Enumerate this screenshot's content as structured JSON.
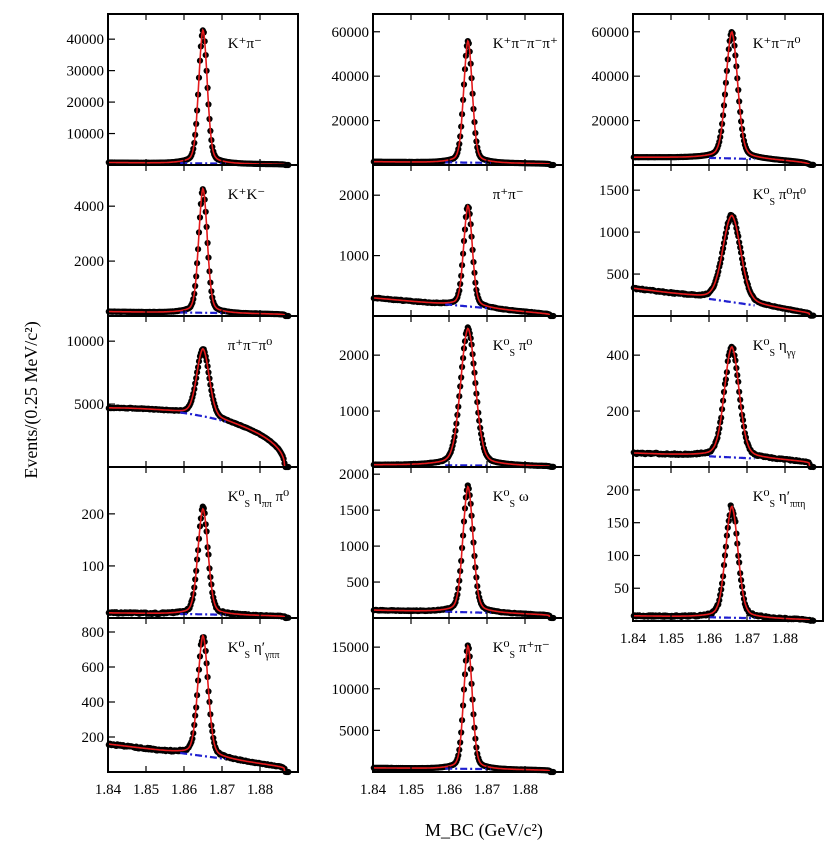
{
  "chart_data": {
    "type": "scatter",
    "xlabel": "M_BC (GeV/c²)",
    "ylabel": "Events/(0.25 MeV/c²)",
    "xlim": [
      1.84,
      1.89
    ],
    "x_ticks": [
      "1.84",
      "1.85",
      "1.86",
      "1.87",
      "1.88"
    ],
    "grid": false,
    "legend": "none",
    "colors": {
      "data": "#000000",
      "fit": "#e41a1c",
      "background": "#1f1fd0"
    },
    "panels": [
      {
        "id": "kpi",
        "label": "K⁺π⁻",
        "peak_x": 1.865,
        "peak_y": 43000,
        "sigma": 0.0011,
        "bkg_left": 800,
        "bkg_right": 300,
        "ylim": [
          0,
          48000
        ],
        "y_ticks": [
          10000,
          20000,
          30000,
          40000
        ]
      },
      {
        "id": "kk",
        "label": "K⁺K⁻",
        "peak_x": 1.865,
        "peak_y": 4650,
        "sigma": 0.0011,
        "bkg_left": 160,
        "bkg_right": 90,
        "ylim": [
          0,
          5500
        ],
        "y_ticks": [
          2000,
          4000
        ]
      },
      {
        "id": "pipipi0",
        "label": "π⁺π⁻π⁰",
        "peak_x": 1.865,
        "peak_y": 9400,
        "sigma": 0.0016,
        "bkg_left": 4700,
        "bkg_right": 0,
        "ylim": [
          0,
          12000
        ],
        "y_ticks": [
          5000,
          10000
        ]
      },
      {
        "id": "ks_etapipipi0",
        "label": "K⁰_S η_ππ π⁰",
        "peak_x": 1.865,
        "peak_y": 210,
        "sigma": 0.0013,
        "bkg_left": 10,
        "bkg_right": 5,
        "ylim": [
          0,
          290
        ],
        "y_ticks": [
          100,
          200
        ]
      },
      {
        "id": "ks_etap_gpp",
        "label": "K⁰_S η′_γππ",
        "peak_x": 1.865,
        "peak_y": 780,
        "sigma": 0.0013,
        "bkg_left": 160,
        "bkg_right": 40,
        "ylim": [
          0,
          880
        ],
        "y_ticks": [
          200,
          400,
          600,
          800
        ]
      },
      {
        "id": "k3pi",
        "label": "K⁺π⁻π⁻π⁺",
        "peak_x": 1.865,
        "peak_y": 56000,
        "sigma": 0.0011,
        "bkg_left": 1500,
        "bkg_right": 800,
        "ylim": [
          0,
          68000
        ],
        "y_ticks": [
          20000,
          40000,
          60000
        ]
      },
      {
        "id": "pipi",
        "label": "π⁺π⁻",
        "peak_x": 1.865,
        "peak_y": 1830,
        "sigma": 0.0011,
        "bkg_left": 300,
        "bkg_right": 50,
        "ylim": [
          0,
          2500
        ],
        "y_ticks": [
          1000,
          2000
        ]
      },
      {
        "id": "kspi0",
        "label": "K⁰_S π⁰",
        "peak_x": 1.865,
        "peak_y": 2480,
        "sigma": 0.0019,
        "bkg_left": 40,
        "bkg_right": 20,
        "ylim": [
          0,
          2700
        ],
        "y_ticks": [
          1000,
          2000
        ]
      },
      {
        "id": "ksomega",
        "label": "K⁰_S ω",
        "peak_x": 1.865,
        "peak_y": 1830,
        "sigma": 0.0013,
        "bkg_left": 110,
        "bkg_right": 60,
        "ylim": [
          0,
          2100
        ],
        "y_ticks": [
          500,
          1000,
          1500,
          2000
        ]
      },
      {
        "id": "kspipi",
        "label": "K⁰_S π⁺π⁻",
        "peak_x": 1.865,
        "peak_y": 15200,
        "sigma": 0.0011,
        "bkg_left": 500,
        "bkg_right": 300,
        "ylim": [
          0,
          18500
        ],
        "y_ticks": [
          5000,
          10000,
          15000
        ]
      },
      {
        "id": "kpipi0",
        "label": "K⁺π⁻π⁰",
        "peak_x": 1.866,
        "peak_y": 60000,
        "sigma": 0.0015,
        "bkg_left": 3500,
        "bkg_right": 0,
        "ylim": [
          0,
          68000
        ],
        "y_ticks": [
          20000,
          40000,
          60000
        ]
      },
      {
        "id": "kspi0pi0",
        "label": "K⁰_S π⁰π⁰",
        "peak_x": 1.866,
        "peak_y": 1200,
        "sigma": 0.0023,
        "bkg_left": 330,
        "bkg_right": 50,
        "ylim": [
          0,
          1800
        ],
        "y_ticks": [
          500,
          1000,
          1500
        ]
      },
      {
        "id": "ks_etagg",
        "label": "K⁰_S η_γγ",
        "peak_x": 1.866,
        "peak_y": 430,
        "sigma": 0.0019,
        "bkg_left": 50,
        "bkg_right": 25,
        "ylim": [
          0,
          540
        ],
        "y_ticks": [
          200,
          400
        ]
      },
      {
        "id": "ks_etap_ppe",
        "label": "K⁰_S η′_ππη",
        "peak_x": 1.866,
        "peak_y": 175,
        "sigma": 0.0016,
        "bkg_left": 8,
        "bkg_right": 3,
        "ylim": [
          0,
          235
        ],
        "y_ticks": [
          50,
          100,
          150,
          200
        ]
      }
    ]
  }
}
